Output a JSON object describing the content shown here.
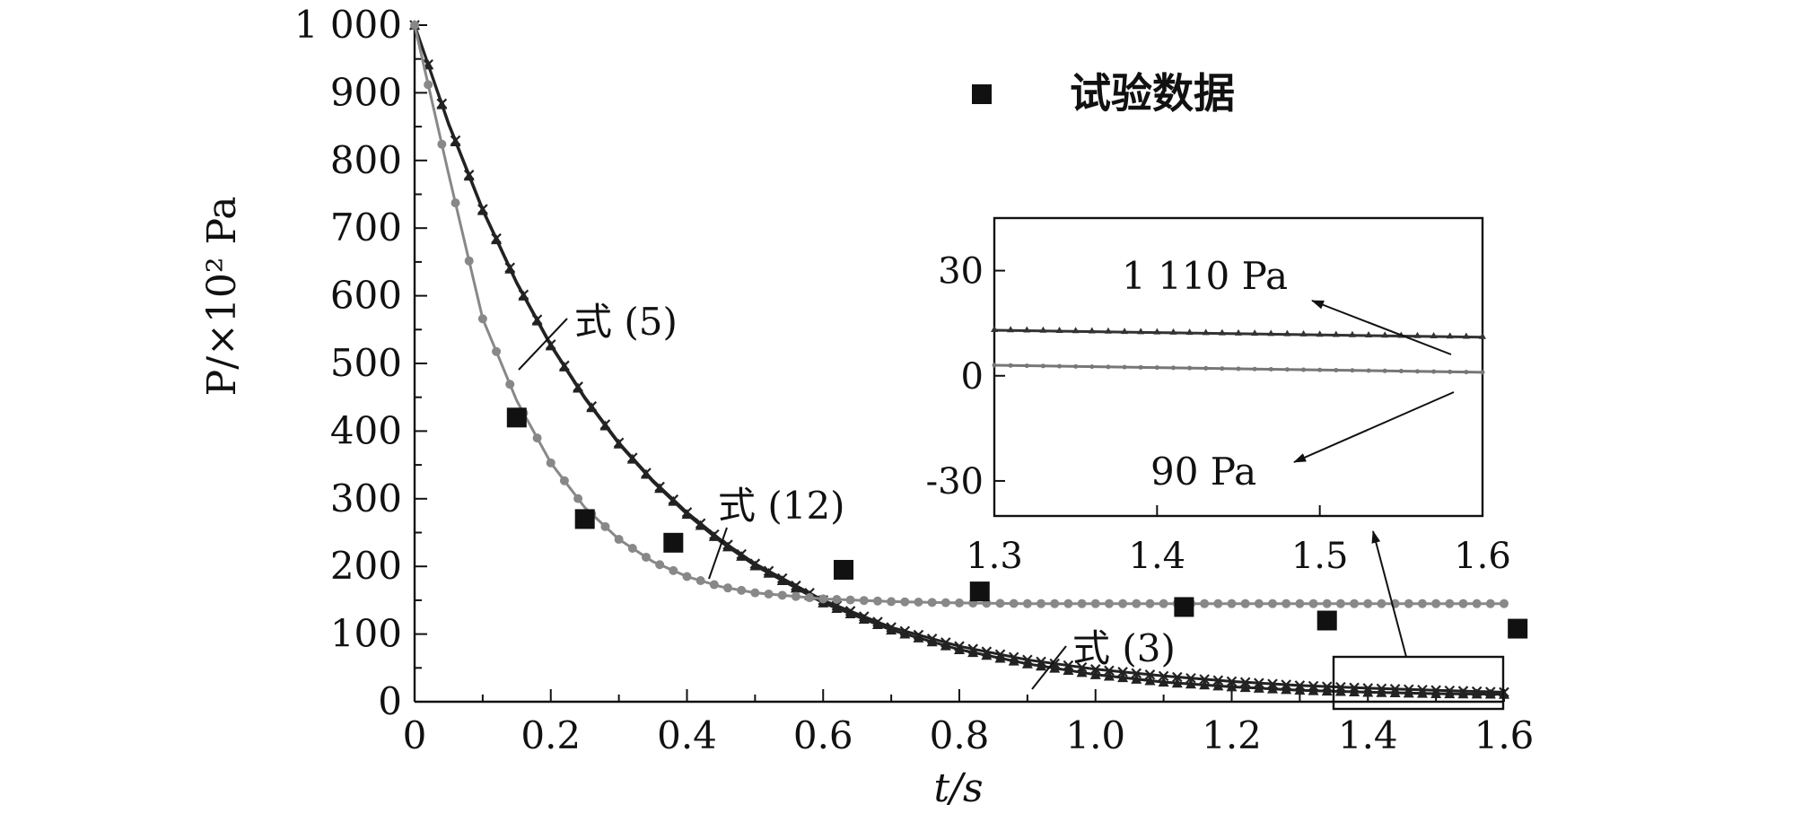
{
  "chart_data": {
    "type": "line",
    "xlabel": "t/s",
    "ylabel": "P/×10² Pa",
    "xlim": [
      0,
      1.6
    ],
    "ylim": [
      0,
      1000
    ],
    "x_ticks": [
      "0",
      "0.2",
      "0.4",
      "0.6",
      "0.8",
      "1.0",
      "1.2",
      "1.4",
      "1.6"
    ],
    "y_ticks": [
      "0",
      "100",
      "200",
      "300",
      "400",
      "500",
      "600",
      "700",
      "800",
      "900",
      "1 000"
    ],
    "legend": {
      "position": "top-right",
      "entries": [
        {
          "marker": "filled-square",
          "label": "试验数据"
        }
      ]
    },
    "series": [
      {
        "name": "试验数据",
        "kind": "scatter",
        "marker": "square",
        "color": "#111111",
        "x": [
          0.15,
          0.25,
          0.38,
          0.63,
          0.83,
          1.13,
          1.34,
          1.62
        ],
        "y": [
          420,
          270,
          235,
          195,
          163,
          140,
          120,
          108
        ]
      },
      {
        "name": "式 (5)",
        "kind": "curve",
        "marker": "x",
        "color": "#222222",
        "x": [
          0,
          0.05,
          0.1,
          0.15,
          0.2,
          0.25,
          0.3,
          0.35,
          0.4,
          0.45,
          0.5,
          0.6,
          0.7,
          0.8,
          0.9,
          1.0,
          1.1,
          1.2,
          1.3,
          1.4,
          1.5,
          1.6
        ],
        "y": [
          1000,
          855,
          728,
          620,
          528,
          450,
          383,
          327,
          280,
          239,
          204,
          150,
          110,
          82,
          62,
          48,
          38,
          30,
          24,
          20,
          17,
          14
        ]
      },
      {
        "name": "式 (3)",
        "kind": "curve",
        "marker": "triangle",
        "color": "#222222",
        "x": [
          0,
          0.05,
          0.1,
          0.15,
          0.2,
          0.25,
          0.3,
          0.35,
          0.4,
          0.45,
          0.5,
          0.6,
          0.7,
          0.8,
          0.9,
          1.0,
          1.1,
          1.2,
          1.3,
          1.4,
          1.5,
          1.6
        ],
        "y": [
          1000,
          853,
          726,
          618,
          526,
          448,
          381,
          325,
          277,
          236,
          201,
          146,
          106,
          77,
          56,
          40,
          29,
          22,
          17,
          14,
          12,
          11
        ]
      },
      {
        "name": "式 (12)",
        "kind": "curve",
        "marker": "circle",
        "color": "#888888",
        "x": [
          0,
          0.05,
          0.1,
          0.15,
          0.2,
          0.25,
          0.3,
          0.35,
          0.4,
          0.45,
          0.5,
          0.6,
          0.7,
          0.8,
          0.9,
          1.0,
          1.1,
          1.2,
          1.3,
          1.4,
          1.5,
          1.6
        ],
        "y": [
          1000,
          780,
          566,
          445,
          353,
          287,
          240,
          207,
          185,
          170,
          161,
          152,
          148,
          146,
          145,
          145,
          145,
          145,
          145,
          145,
          145,
          145
        ]
      }
    ],
    "annotations": [
      {
        "text": "式 (5)",
        "x": 0.5,
        "y": 550
      },
      {
        "text": "式 (12)",
        "x": 0.7,
        "y": 280
      },
      {
        "text": "式 (3)",
        "x": 1.12,
        "y": 68
      }
    ],
    "inset": {
      "xlim": [
        1.3,
        1.6
      ],
      "ylim": [
        -40,
        45
      ],
      "x_ticks": [
        "1.3",
        "1.4",
        "1.5",
        "1.6"
      ],
      "y_ticks": [
        "30",
        "0",
        "-30"
      ],
      "series": [
        {
          "marker": "triangle",
          "color": "#333333",
          "x": [
            1.3,
            1.6
          ],
          "y": [
            13,
            11
          ]
        },
        {
          "marker": "dot",
          "color": "#777777",
          "x": [
            1.3,
            1.6
          ],
          "y": [
            3,
            1
          ]
        }
      ],
      "annotations": [
        {
          "text": "1 110 Pa",
          "x": 1.4,
          "y": 33
        },
        {
          "text": "90 Pa",
          "x": 1.37,
          "y": -24
        }
      ]
    }
  }
}
